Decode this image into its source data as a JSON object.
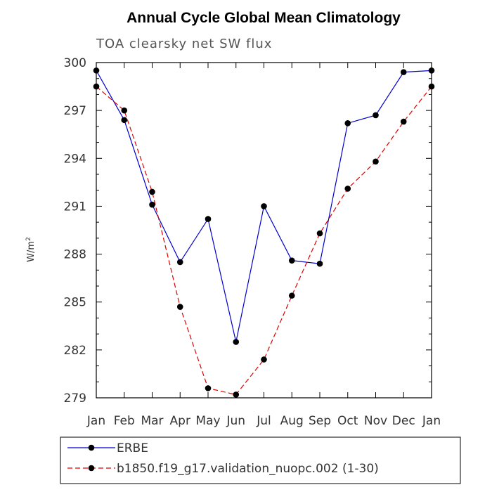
{
  "chart_data": {
    "type": "line",
    "title": "Annual Cycle Global Mean Climatology",
    "subtitle": "TOA clearsky net SW flux",
    "xlabel": "",
    "ylabel": "W/m",
    "ylabel_sup": "2",
    "categories": [
      "Jan",
      "Feb",
      "Mar",
      "Apr",
      "May",
      "Jun",
      "Jul",
      "Aug",
      "Sep",
      "Oct",
      "Nov",
      "Dec",
      "Jan"
    ],
    "ylim": [
      279,
      300
    ],
    "yticks": [
      279,
      282,
      285,
      288,
      291,
      294,
      297,
      300
    ],
    "legend_position": "bottom",
    "series": [
      {
        "name": "ERBE",
        "color": "#0000cc",
        "style": "solid",
        "values": [
          299.5,
          296.4,
          291.1,
          287.5,
          290.2,
          282.5,
          291.0,
          287.6,
          287.4,
          296.2,
          296.7,
          299.4,
          299.5
        ]
      },
      {
        "name": "b1850.f19_g17.validation_nuopc.002 (1-30)",
        "color": "#dd0000",
        "style": "dashed",
        "values": [
          298.5,
          297.0,
          291.9,
          284.7,
          279.6,
          279.2,
          281.4,
          285.4,
          289.3,
          292.1,
          293.8,
          296.3,
          298.5
        ]
      }
    ]
  }
}
